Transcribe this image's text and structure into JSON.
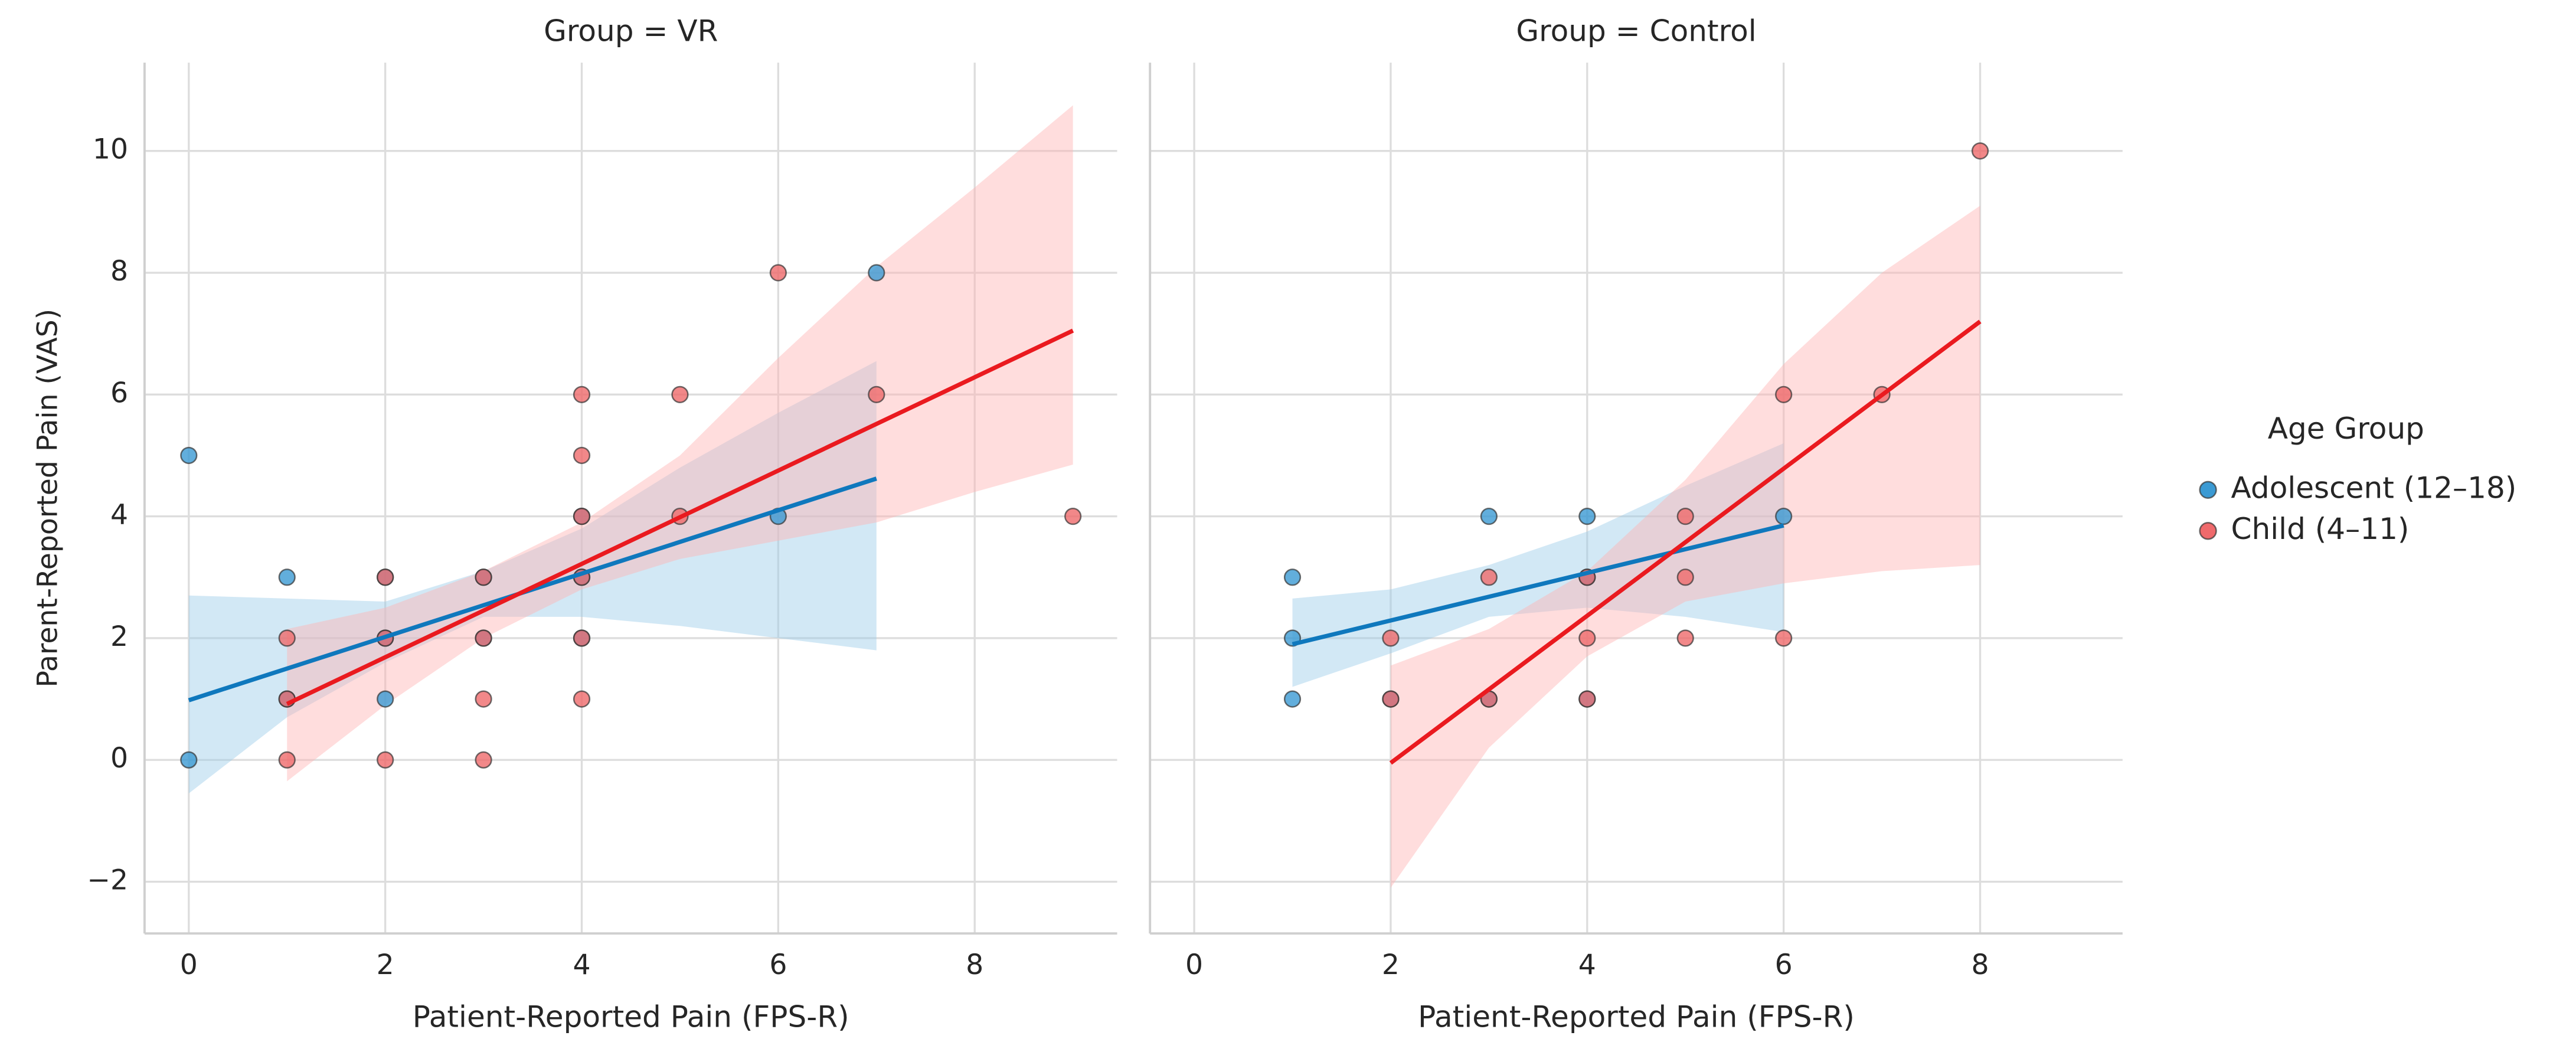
{
  "chart_data": {
    "type": "scatter",
    "xlabel": "Patient-Reported Pain (FPS-R)",
    "ylabel": "Parent-Reported Pain (VAS)",
    "legend_title": "Age Group",
    "legend_position": "right",
    "grid": true,
    "xlim": [
      -0.45,
      9.45
    ],
    "ylim": [
      -2.85,
      11.45
    ],
    "xticks": [
      0,
      2,
      4,
      6,
      8
    ],
    "yticks": [
      {
        "value": -2,
        "label": "−2"
      },
      0,
      2,
      4,
      6,
      8,
      10
    ],
    "series": [
      {
        "name": "Adolescent (12–18)",
        "color": "#0f78bd",
        "point_color": "#3b9ad3",
        "band_color": "#9ccbe8"
      },
      {
        "name": "Child (4–11)",
        "color": "#ea1a1f",
        "point_color": "#ef6a6c",
        "band_color": "#ffb3b3"
      }
    ],
    "facets": [
      {
        "title": "Group = VR",
        "series": [
          {
            "x": [
              0,
              0,
              1,
              1,
              2,
              2,
              2,
              3,
              3,
              4,
              4,
              4,
              6,
              7
            ],
            "y": [
              5,
              0,
              3,
              1,
              3,
              2,
              1,
              3,
              2,
              4,
              3,
              2,
              4,
              8
            ],
            "fit_x": [
              0,
              7
            ],
            "fit_y": [
              0.98,
              4.62
            ],
            "ci_x": [
              0,
              1,
              2,
              3,
              4,
              5,
              6,
              7
            ],
            "ci_lower": [
              -0.55,
              0.7,
              1.6,
              2.35,
              2.35,
              2.2,
              2.0,
              1.8
            ],
            "ci_upper": [
              2.7,
              2.65,
              2.6,
              3.1,
              3.8,
              4.8,
              5.7,
              6.55
            ]
          },
          {
            "x": [
              1,
              1,
              1,
              2,
              2,
              2,
              3,
              3,
              3,
              3,
              4,
              4,
              4,
              4,
              4,
              4,
              5,
              5,
              6,
              7,
              9
            ],
            "y": [
              2,
              1,
              0,
              3,
              2,
              0,
              3,
              2,
              1,
              0,
              6,
              5,
              4,
              3,
              2,
              1,
              6,
              4,
              8,
              6,
              4
            ],
            "fit_x": [
              1,
              9
            ],
            "fit_y": [
              0.92,
              7.05
            ],
            "ci_x": [
              1,
              2,
              3,
              4,
              5,
              6,
              7,
              8,
              9
            ],
            "ci_lower": [
              -0.35,
              0.9,
              2.0,
              2.8,
              3.3,
              3.6,
              3.9,
              4.4,
              4.85
            ],
            "ci_upper": [
              2.15,
              2.5,
              3.1,
              3.9,
              5.0,
              6.6,
              8.1,
              9.4,
              10.75
            ]
          }
        ]
      },
      {
        "title": "Group = Control",
        "series": [
          {
            "x": [
              1,
              1,
              1,
              2,
              3,
              3,
              4,
              4,
              4,
              6
            ],
            "y": [
              3,
              2,
              1,
              1,
              4,
              1,
              4,
              3,
              1,
              4
            ],
            "fit_x": [
              1,
              6
            ],
            "fit_y": [
              1.9,
              3.85
            ],
            "ci_x": [
              1,
              2,
              3,
              4,
              5,
              6
            ],
            "ci_lower": [
              1.2,
              1.75,
              2.35,
              2.5,
              2.35,
              2.1
            ],
            "ci_upper": [
              2.65,
              2.8,
              3.2,
              3.75,
              4.5,
              5.2
            ]
          },
          {
            "x": [
              2,
              2,
              3,
              3,
              4,
              4,
              4,
              5,
              5,
              5,
              6,
              6,
              7,
              8
            ],
            "y": [
              2,
              1,
              3,
              1,
              3,
              2,
              1,
              4,
              3,
              2,
              6,
              2,
              6,
              10
            ],
            "fit_x": [
              2,
              8
            ],
            "fit_y": [
              -0.05,
              7.2
            ],
            "ci_x": [
              2,
              3,
              4,
              5,
              6,
              7,
              8
            ],
            "ci_lower": [
              -2.1,
              0.2,
              1.7,
              2.6,
              2.9,
              3.1,
              3.2
            ],
            "ci_upper": [
              1.55,
              2.15,
              3.1,
              4.6,
              6.5,
              8.0,
              9.1
            ]
          }
        ]
      }
    ]
  }
}
